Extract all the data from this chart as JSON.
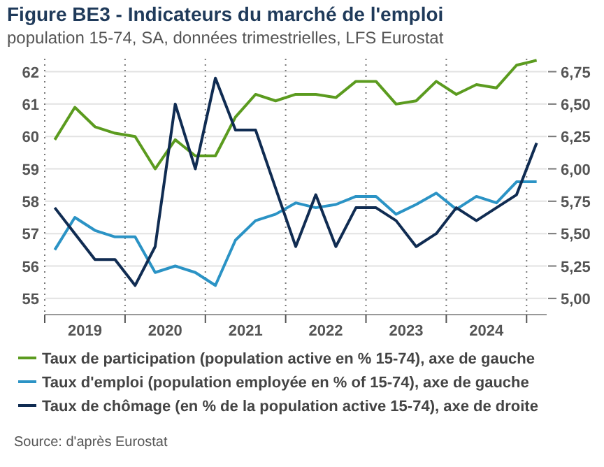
{
  "chart_data": {
    "type": "line",
    "title": "Figure BE3 - Indicateurs du marché de l'emploi",
    "subtitle": "population 15-74, SA, données trimestrielles, LFS Eurostat",
    "x": [
      2019.125,
      2019.375,
      2019.625,
      2019.875,
      2020.125,
      2020.375,
      2020.625,
      2020.875,
      2021.125,
      2021.375,
      2021.625,
      2021.875,
      2022.125,
      2022.375,
      2022.625,
      2022.875,
      2023.125,
      2023.375,
      2023.625,
      2023.875,
      2024.125,
      2024.375,
      2024.625,
      2024.875,
      2025.125
    ],
    "series": [
      {
        "name": "Taux de participation (population active en % 15-74), axe de gauche",
        "color": "#5b9b1f",
        "values": [
          59.9,
          60.9,
          60.3,
          60.1,
          60.0,
          59.0,
          59.9,
          59.4,
          59.4,
          60.6,
          61.3,
          61.1,
          61.3,
          61.3,
          61.2,
          61.7,
          61.7,
          61.0,
          61.1,
          61.7,
          61.3,
          61.6,
          61.5,
          62.2,
          62.35
        ]
      },
      {
        "name": "Taux d'emploi (population employée en % of 15-74), axe de gauche",
        "color": "#2b93c5",
        "values": [
          56.5,
          57.5,
          57.1,
          56.9,
          56.9,
          55.8,
          56.0,
          55.8,
          55.4,
          56.8,
          57.4,
          57.6,
          57.95,
          57.8,
          57.9,
          58.15,
          58.15,
          57.6,
          57.9,
          58.25,
          57.75,
          58.15,
          57.95,
          58.6,
          58.6
        ]
      },
      {
        "name": "Taux de chômage (en % de la population active  15-74), axe de droite",
        "color": "#102c52",
        "axis": "y2",
        "values": [
          5.7,
          5.5,
          5.3,
          5.3,
          5.1,
          5.4,
          6.5,
          6.0,
          6.7,
          6.3,
          6.3,
          5.85,
          5.4,
          5.8,
          5.4,
          5.7,
          5.7,
          5.6,
          5.4,
          5.5,
          5.7,
          5.6,
          5.7,
          5.8,
          6.2
        ]
      }
    ],
    "xlim": [
      2019,
      2025.25
    ],
    "xticks": [
      {
        "value": 2019,
        "label": null
      },
      {
        "value": 2019.5,
        "label": "2019"
      },
      {
        "value": 2020,
        "label": null
      },
      {
        "value": 2020.5,
        "label": "2020"
      },
      {
        "value": 2021,
        "label": null
      },
      {
        "value": 2021.5,
        "label": "2021"
      },
      {
        "value": 2022,
        "label": null
      },
      {
        "value": 2022.5,
        "label": "2022"
      },
      {
        "value": 2023,
        "label": null
      },
      {
        "value": 2023.5,
        "label": "2023"
      },
      {
        "value": 2024,
        "label": null
      },
      {
        "value": 2024.5,
        "label": "2024"
      },
      {
        "value": 2025,
        "label": null
      }
    ],
    "ylim": [
      54.5,
      62.4
    ],
    "yticks": [
      55,
      56,
      57,
      58,
      59,
      60,
      61,
      62
    ],
    "y2lim": [
      4.875,
      6.85
    ],
    "y2ticks": [
      {
        "value": 5,
        "label": "5,00"
      },
      {
        "value": 5.25,
        "label": "5,25"
      },
      {
        "value": 5.5,
        "label": "5,50"
      },
      {
        "value": 5.75,
        "label": "5,75"
      },
      {
        "value": 6,
        "label": "6,00"
      },
      {
        "value": 6.25,
        "label": "6,25"
      },
      {
        "value": 6.5,
        "label": "6,50"
      },
      {
        "value": 6.75,
        "label": "6,75"
      }
    ],
    "grid": true,
    "legend": "bottom",
    "marker": "none",
    "line_style": "solid",
    "annotations": [
      "Source: d'après Eurostat"
    ]
  }
}
